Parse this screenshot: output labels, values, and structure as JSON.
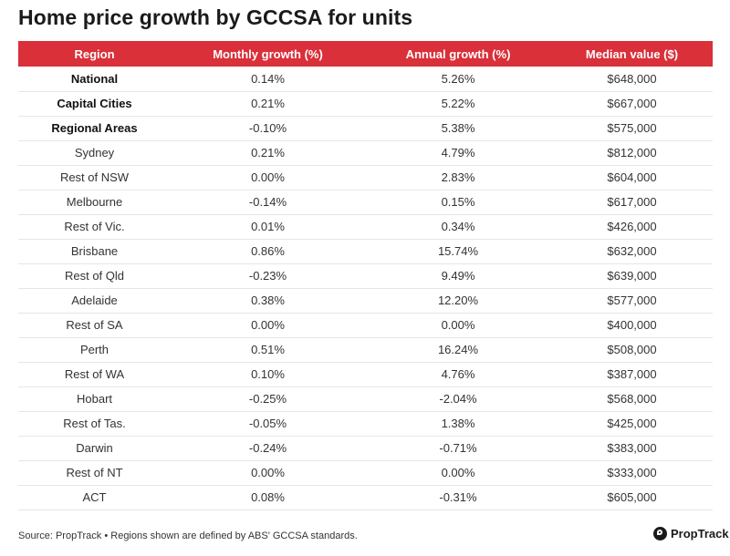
{
  "title": "Home price growth by GCCSA for units",
  "source": "Source: PropTrack • Regions shown are defined by ABS' GCCSA standards.",
  "logo_text": "PropTrack",
  "colors": {
    "header_bg": "#d9303a",
    "header_text": "#ffffff"
  },
  "chart_data": {
    "type": "table",
    "columns": [
      "Region",
      "Monthly growth (%)",
      "Annual growth (%)",
      "Median value ($)"
    ],
    "rows": [
      {
        "region": "National",
        "monthly": "0.14%",
        "annual": "5.26%",
        "median": "$648,000",
        "bold": true
      },
      {
        "region": "Capital Cities",
        "monthly": "0.21%",
        "annual": "5.22%",
        "median": "$667,000",
        "bold": true
      },
      {
        "region": "Regional Areas",
        "monthly": "-0.10%",
        "annual": "5.38%",
        "median": "$575,000",
        "bold": true
      },
      {
        "region": "Sydney",
        "monthly": "0.21%",
        "annual": "4.79%",
        "median": "$812,000",
        "bold": false
      },
      {
        "region": "Rest of NSW",
        "monthly": "0.00%",
        "annual": "2.83%",
        "median": "$604,000",
        "bold": false
      },
      {
        "region": "Melbourne",
        "monthly": "-0.14%",
        "annual": "0.15%",
        "median": "$617,000",
        "bold": false
      },
      {
        "region": "Rest of Vic.",
        "monthly": "0.01%",
        "annual": "0.34%",
        "median": "$426,000",
        "bold": false
      },
      {
        "region": "Brisbane",
        "monthly": "0.86%",
        "annual": "15.74%",
        "median": "$632,000",
        "bold": false
      },
      {
        "region": "Rest of Qld",
        "monthly": "-0.23%",
        "annual": "9.49%",
        "median": "$639,000",
        "bold": false
      },
      {
        "region": "Adelaide",
        "monthly": "0.38%",
        "annual": "12.20%",
        "median": "$577,000",
        "bold": false
      },
      {
        "region": "Rest of SA",
        "monthly": "0.00%",
        "annual": "0.00%",
        "median": "$400,000",
        "bold": false
      },
      {
        "region": "Perth",
        "monthly": "0.51%",
        "annual": "16.24%",
        "median": "$508,000",
        "bold": false
      },
      {
        "region": "Rest of WA",
        "monthly": "0.10%",
        "annual": "4.76%",
        "median": "$387,000",
        "bold": false
      },
      {
        "region": "Hobart",
        "monthly": "-0.25%",
        "annual": "-2.04%",
        "median": "$568,000",
        "bold": false
      },
      {
        "region": "Rest of Tas.",
        "monthly": "-0.05%",
        "annual": "1.38%",
        "median": "$425,000",
        "bold": false
      },
      {
        "region": "Darwin",
        "monthly": "-0.24%",
        "annual": "-0.71%",
        "median": "$383,000",
        "bold": false
      },
      {
        "region": "Rest of NT",
        "monthly": "0.00%",
        "annual": "0.00%",
        "median": "$333,000",
        "bold": false
      },
      {
        "region": "ACT",
        "monthly": "0.08%",
        "annual": "-0.31%",
        "median": "$605,000",
        "bold": false
      }
    ]
  }
}
